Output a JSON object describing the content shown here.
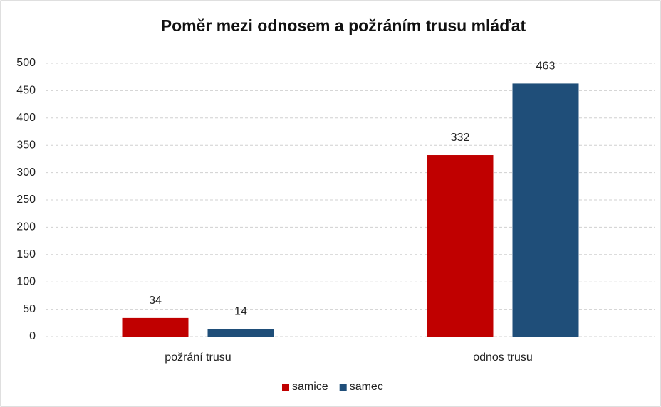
{
  "chart_data": {
    "type": "bar",
    "title": "Poměr mezi odnosem a požráním trusu mláďat",
    "categories": [
      "požrání trusu",
      "odnos trusu"
    ],
    "series": [
      {
        "name": "samice",
        "color": "#c00000",
        "values": [
          34,
          332
        ]
      },
      {
        "name": "samec",
        "color": "#1f4e79",
        "values": [
          14,
          463
        ]
      }
    ],
    "ylim": [
      0,
      500
    ],
    "yticks": [
      0,
      50,
      100,
      150,
      200,
      250,
      300,
      350,
      400,
      450,
      500
    ],
    "grid": true,
    "legend": "bottom"
  }
}
